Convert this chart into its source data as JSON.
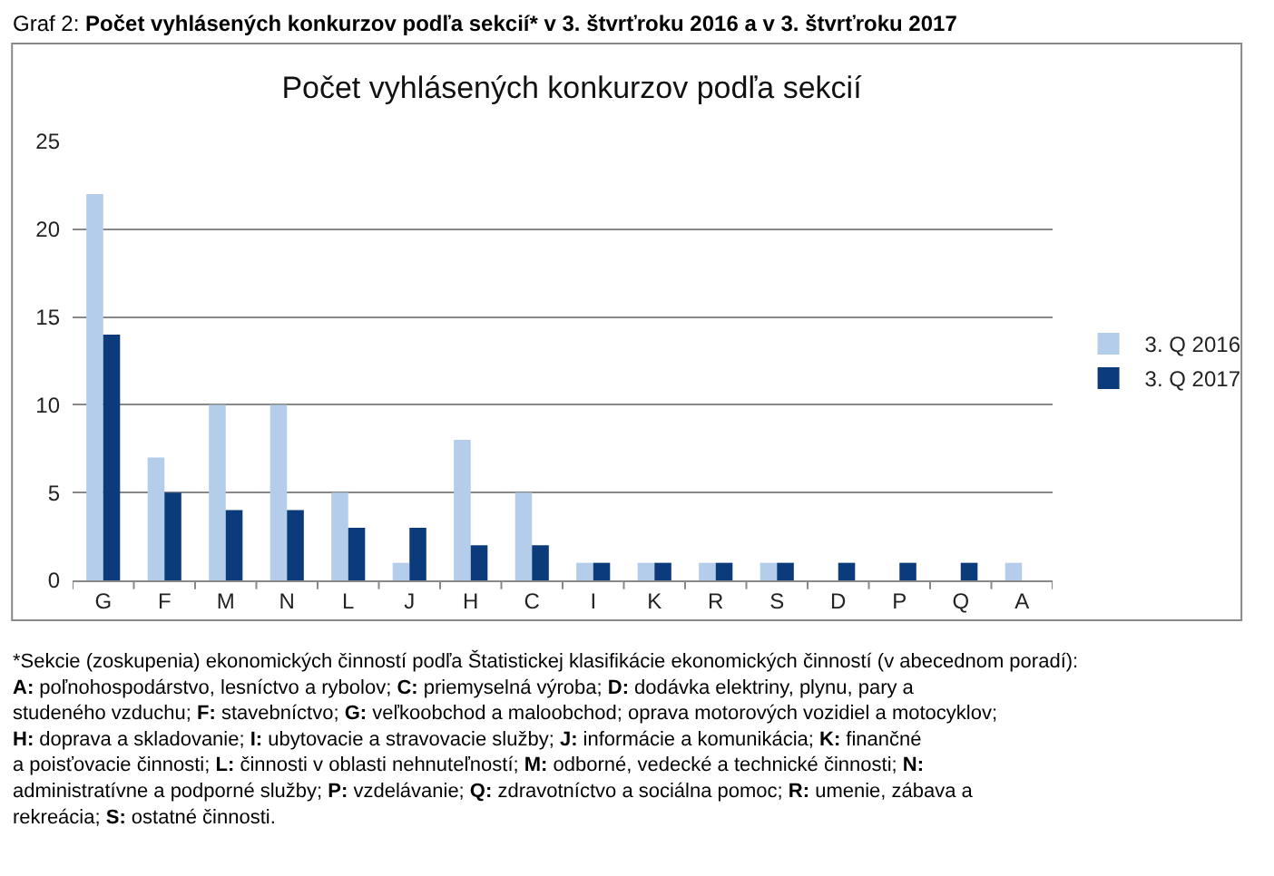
{
  "chart_data": {
    "type": "bar",
    "title": "Počet vyhlásených konkurzov podľa sekcií",
    "categories": [
      "G",
      "F",
      "M",
      "N",
      "L",
      "J",
      "H",
      "C",
      "I",
      "K",
      "R",
      "S",
      "D",
      "P",
      "Q",
      "A"
    ],
    "series": [
      {
        "name": "3. Q 2016",
        "color": "#b4cdea",
        "values": [
          22,
          7,
          10,
          10,
          5,
          1,
          8,
          5,
          1,
          1,
          1,
          1,
          0,
          0,
          0,
          1
        ]
      },
      {
        "name": "3. Q 2017",
        "color": "#0b3b7a",
        "values": [
          14,
          5,
          4,
          4,
          3,
          3,
          2,
          2,
          1,
          1,
          1,
          1,
          1,
          1,
          1,
          0
        ]
      }
    ],
    "ylim": [
      0,
      25
    ],
    "yticks": [
      0,
      5,
      10,
      15,
      20,
      25
    ],
    "grid": "y",
    "legend": "right",
    "annotations": [
      "Graf 2: **Počet vyhlásených konkurzov podľa sekcií* v 3. štvrťroku 2016 a v 3. štvrťroku 2017**",
      "*Sekcie (zoskupenia) ekonomických činností podľa Štatistickej klasifikácie ekonomických činností (v abecednom poradí): **A:** poľnohospodárstvo, lesníctvo a rybolov; **C:** priemyselná výroba; **D:** dodávka elektriny, plynu, pary a studeného vzduchu; **F:** stavebníctvo; **G:** veľkoobchod a maloobchod; oprava motorových vozidiel a motocyklov; **H:** doprava a skladovanie; **I:** ubytovacie a stravovacie služby; **J:** informácie a komunikácia; **K:** finančné a poisťovacie činnosti; **L:** činnosti v oblasti nehnuteľností; **M:** odborné, vedecké a technické činnosti; **N:** administratívne a podporné služby; **P:** vzdelávanie; **Q:** zdravotníctvo a sociálna pomoc; **R:** umenie, zábava a rekreácia; **S:** ostatné činnosti."
    ]
  }
}
